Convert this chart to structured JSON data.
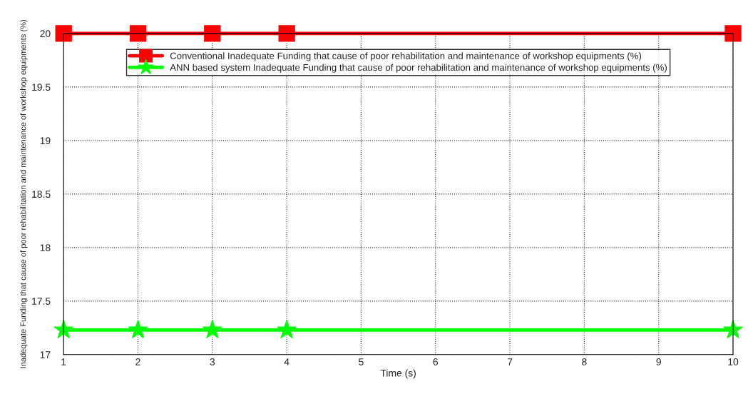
{
  "chart_data": {
    "type": "line",
    "xlabel": "Time (s)",
    "ylabel": "Inadequate Funding that cause of poor rehabilitation and maintenance of workshop equipments (%)",
    "x": [
      1,
      2,
      3,
      4,
      10
    ],
    "series": [
      {
        "name": "Conventional Inadequate Funding that cause of poor rehabilitation and maintenance of workshop equipments (%)",
        "color": "#ff0000",
        "marker": "square",
        "values": [
          20,
          20,
          20,
          20,
          20
        ]
      },
      {
        "name": "ANN based system Inadequate Funding that cause of poor rehabilitation and maintenance of workshop equipments (%)",
        "color": "#00ff00",
        "marker": "star",
        "values": [
          17.23,
          17.23,
          17.23,
          17.23,
          17.23
        ]
      }
    ],
    "xlim": [
      1,
      10
    ],
    "xticks": [
      1,
      2,
      3,
      4,
      5,
      6,
      7,
      8,
      9,
      10
    ],
    "ylim": [
      17,
      20
    ],
    "yticks": [
      17,
      17.5,
      18,
      18.5,
      19,
      19.5,
      20
    ],
    "grid": true,
    "legend": "top",
    "line_style": "solid"
  }
}
